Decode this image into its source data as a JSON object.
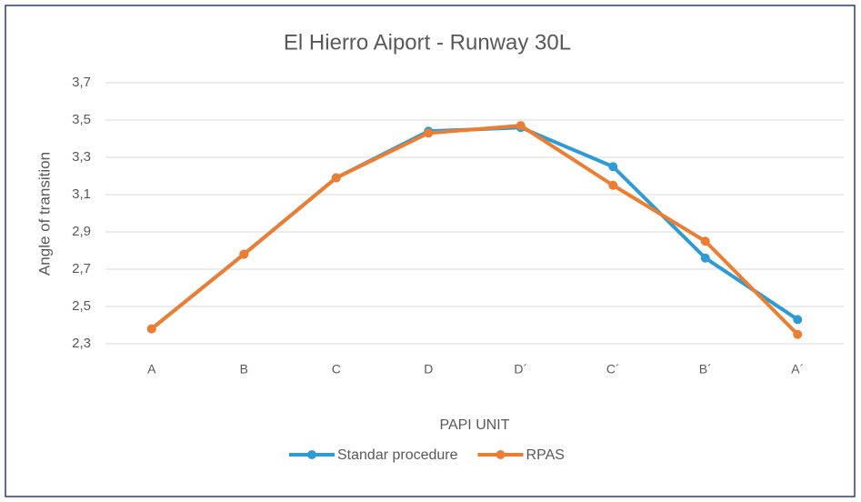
{
  "chart_data": {
    "type": "line",
    "title": "El Hierro Aiport - Runway 30L",
    "x_label": "PAPI UNIT",
    "y_label": "Angle of transition",
    "categories": [
      "A",
      "B",
      "C",
      "D",
      "D´",
      "C´",
      "B´",
      "A´"
    ],
    "series": [
      {
        "name": "Standar procedure",
        "color": "#2e9bd6",
        "values": [
          2.38,
          2.78,
          3.19,
          3.44,
          3.46,
          3.25,
          2.76,
          2.43
        ]
      },
      {
        "name": "RPAS",
        "color": "#ed7d31",
        "values": [
          2.38,
          2.78,
          3.19,
          3.43,
          3.47,
          3.15,
          2.85,
          2.35
        ]
      }
    ],
    "ylim": [
      2.3,
      3.7
    ],
    "yticks": [
      {
        "value": 2.3,
        "label": "2,3"
      },
      {
        "value": 2.5,
        "label": "2,5"
      },
      {
        "value": 2.7,
        "label": "2,7"
      },
      {
        "value": 2.9,
        "label": "2,9"
      },
      {
        "value": 3.1,
        "label": "3,1"
      },
      {
        "value": 3.3,
        "label": "3,3"
      },
      {
        "value": 3.5,
        "label": "3,5"
      },
      {
        "value": 3.7,
        "label": "3,7"
      }
    ],
    "grid": true,
    "legend": "bottom"
  }
}
